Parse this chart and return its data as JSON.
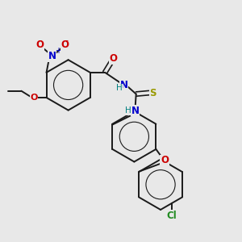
{
  "bg_color": "#e8e8e8",
  "bond_color": "#1a1a1a",
  "bond_width": 1.4,
  "fig_size": [
    3.0,
    3.0
  ],
  "dpi": 100,
  "atoms": {
    "N_blue": "#0000cc",
    "O_red": "#cc0000",
    "S_yellow": "#999900",
    "Cl_green": "#228B22",
    "H_teal": "#008080"
  },
  "xlim": [
    0,
    10
  ],
  "ylim": [
    0,
    10
  ]
}
